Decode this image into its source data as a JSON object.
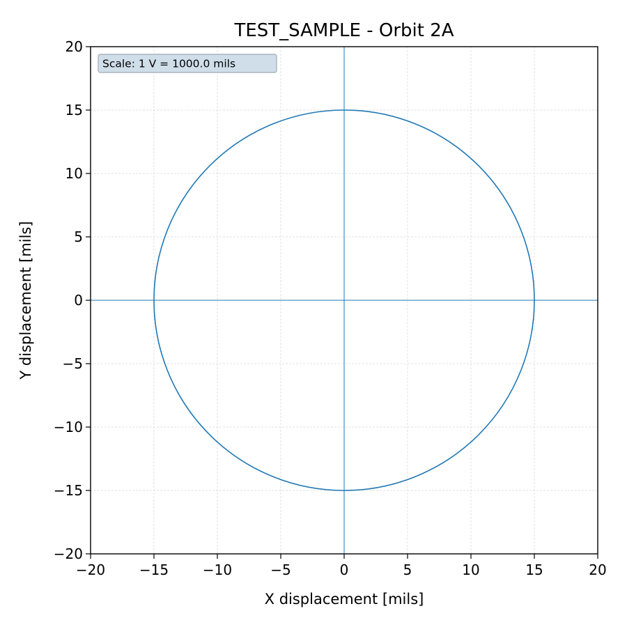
{
  "chart_data": {
    "type": "line",
    "title": "TEST_SAMPLE - Orbit 2A",
    "xlabel": "X displacement [mils]",
    "ylabel": "Y displacement [mils]",
    "xlim": [
      -20,
      20
    ],
    "ylim": [
      -20,
      20
    ],
    "xticks": [
      -20,
      -15,
      -10,
      -5,
      0,
      5,
      10,
      15,
      20
    ],
    "yticks": [
      -20,
      -15,
      -10,
      -5,
      0,
      5,
      10,
      15,
      20
    ],
    "xtick_labels": [
      "−20",
      "−15",
      "−10",
      "−5",
      "0",
      "5",
      "10",
      "15",
      "20"
    ],
    "ytick_labels": [
      "−20",
      "−15",
      "−10",
      "−5",
      "0",
      "5",
      "10",
      "15",
      "20"
    ],
    "grid": true,
    "annotation": "Scale: 1 V = 1000.0 mils",
    "annotation_placement": "top-left",
    "reference_lines": [
      {
        "orientation": "horizontal",
        "value": 0
      },
      {
        "orientation": "vertical",
        "value": 0
      }
    ],
    "series": [
      {
        "shape": "circle",
        "center": [
          0,
          0
        ],
        "radius": 15,
        "x": [
          15,
          12.135,
          4.635,
          -4.635,
          -12.135,
          -15,
          -12.135,
          -4.635,
          4.635,
          12.135,
          15
        ],
        "y": [
          0,
          8.817,
          14.266,
          14.266,
          8.817,
          0,
          -8.817,
          -14.266,
          -14.266,
          -8.817,
          0
        ]
      }
    ],
    "colors": {
      "series": "#1f77b4",
      "reference_line": "#1f77b4",
      "grid": "#d9d9d9",
      "scale_box_fill": "#d0deea",
      "scale_box_stroke": "#a8b4be",
      "axes": "#000000"
    }
  }
}
